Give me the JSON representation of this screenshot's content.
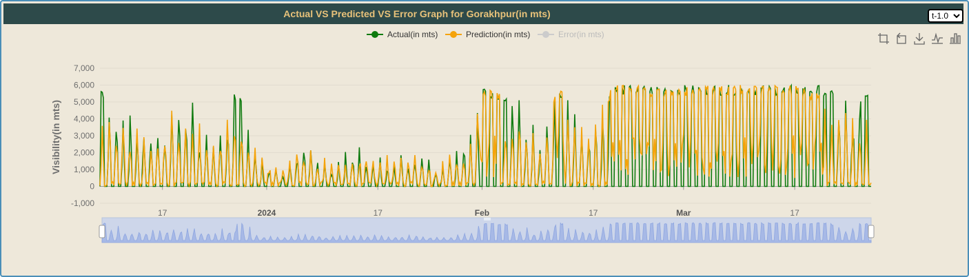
{
  "title": "Actual VS Predicted VS Error Graph for Gorakhpur(in mts)",
  "lead_time_select": {
    "selected": "t-1.0",
    "options": [
      "t-1.0"
    ]
  },
  "toolbox": {
    "icons": [
      "zoom-icon",
      "zoom-reset-icon",
      "download-icon",
      "line-chart-icon",
      "bar-chart-icon"
    ]
  },
  "colors": {
    "actual": "#0e7a0e",
    "prediction": "#f5a30a",
    "error_inactive": "#cccccc",
    "header_bg": "#2d4a4a",
    "title": "#e8c27a"
  },
  "chart_data": {
    "type": "line",
    "title": "Actual VS Predicted VS Error Graph for Gorakhpur(in mts)",
    "ylabel": "Visibility(in mts)",
    "xlabel": "",
    "ylim": [
      -1000,
      7000
    ],
    "yticks": [
      "7,000",
      "6,000",
      "5,000",
      "4,000",
      "3,000",
      "2,000",
      "1,000",
      "0",
      "-1,000"
    ],
    "xticks": [
      "17",
      "2024",
      "17",
      "Feb",
      "17",
      "Mar",
      "17"
    ],
    "x_range": [
      "2023-12-08",
      "2024-03-28"
    ],
    "legend_placement": "top-center",
    "grid": true,
    "series": [
      {
        "name": "Actual(in mts)",
        "active": true,
        "profile": [
          [
            "2023-12-08",
            6000
          ],
          [
            "2023-12-12",
            4000
          ],
          [
            "2023-12-16",
            3500
          ],
          [
            "2023-12-20",
            5500
          ],
          [
            "2023-12-24",
            2800
          ],
          [
            "2023-12-28",
            6000
          ],
          [
            "2023-12-31",
            2000
          ],
          [
            "2024-01-03",
            800
          ],
          [
            "2024-01-06",
            2700
          ],
          [
            "2024-01-10",
            1200
          ],
          [
            "2024-01-14",
            2400
          ],
          [
            "2024-01-18",
            1500
          ],
          [
            "2024-01-22",
            2000
          ],
          [
            "2024-01-26",
            1100
          ],
          [
            "2024-01-29",
            2300
          ],
          [
            "2024-02-01",
            6000
          ],
          [
            "2024-02-05",
            5500
          ],
          [
            "2024-02-09",
            3000
          ],
          [
            "2024-02-12",
            6000
          ],
          [
            "2024-02-16",
            3500
          ],
          [
            "2024-02-20",
            6000
          ],
          [
            "2024-02-24",
            6000
          ],
          [
            "2024-02-28",
            6000
          ],
          [
            "2024-03-03",
            6000
          ],
          [
            "2024-03-07",
            6000
          ],
          [
            "2024-03-12",
            6000
          ],
          [
            "2024-03-17",
            6000
          ],
          [
            "2024-03-21",
            6000
          ],
          [
            "2024-03-25",
            5000
          ],
          [
            "2024-03-28",
            6000
          ]
        ]
      },
      {
        "name": "Prediction(in mts)",
        "active": true,
        "profile": [
          [
            "2023-12-08",
            5000
          ],
          [
            "2023-12-12",
            3800
          ],
          [
            "2023-12-16",
            3600
          ],
          [
            "2023-12-20",
            5000
          ],
          [
            "2023-12-24",
            3000
          ],
          [
            "2023-12-28",
            4800
          ],
          [
            "2023-12-31",
            1800
          ],
          [
            "2024-01-03",
            1000
          ],
          [
            "2024-01-06",
            2500
          ],
          [
            "2024-01-10",
            1300
          ],
          [
            "2024-01-14",
            2400
          ],
          [
            "2024-01-18",
            1800
          ],
          [
            "2024-01-22",
            1900
          ],
          [
            "2024-01-26",
            1200
          ],
          [
            "2024-01-29",
            2200
          ],
          [
            "2024-02-01",
            6000
          ],
          [
            "2024-02-05",
            5200
          ],
          [
            "2024-02-09",
            3200
          ],
          [
            "2024-02-12",
            6000
          ],
          [
            "2024-02-16",
            3800
          ],
          [
            "2024-02-20",
            6000
          ],
          [
            "2024-02-24",
            6000
          ],
          [
            "2024-02-28",
            5800
          ],
          [
            "2024-03-03",
            6000
          ],
          [
            "2024-03-07",
            6000
          ],
          [
            "2024-03-12",
            6000
          ],
          [
            "2024-03-17",
            6000
          ],
          [
            "2024-03-21",
            5500
          ],
          [
            "2024-03-25",
            4500
          ],
          [
            "2024-03-28",
            4500
          ]
        ]
      },
      {
        "name": "Error(in mts)",
        "active": false,
        "profile": []
      }
    ]
  }
}
